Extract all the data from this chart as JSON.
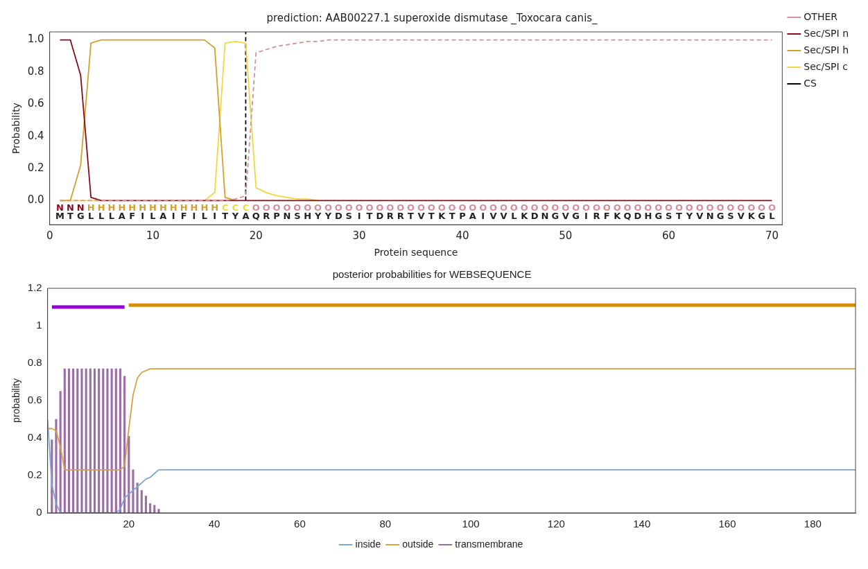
{
  "chart_data": [
    {
      "type": "line",
      "title": "prediction: AAB00227.1 superoxide dismutase _Toxocara canis_",
      "xlabel": "Protein sequence",
      "ylabel": "Probability",
      "x": [
        1,
        2,
        3,
        4,
        5,
        6,
        7,
        8,
        9,
        10,
        11,
        12,
        13,
        14,
        15,
        16,
        17,
        18,
        19,
        20,
        21,
        22,
        23,
        24,
        25,
        26,
        27,
        28,
        29,
        30,
        31,
        32,
        33,
        34,
        35,
        36,
        37,
        38,
        39,
        40,
        41,
        42,
        43,
        44,
        45,
        46,
        47,
        48,
        49,
        50,
        51,
        52,
        53,
        54,
        55,
        56,
        57,
        58,
        59,
        60,
        61,
        62,
        63,
        64,
        65,
        66,
        67,
        68,
        69,
        70
      ],
      "series": [
        {
          "name": "OTHER",
          "color": "#d4909a",
          "line_style": "dashed",
          "values": [
            0,
            0,
            0,
            0,
            0,
            0,
            0,
            0,
            0,
            0,
            0,
            0,
            0,
            0,
            0,
            0,
            0,
            0.01,
            0.03,
            0.92,
            0.94,
            0.96,
            0.97,
            0.98,
            0.99,
            0.99,
            1,
            1,
            1,
            1,
            1,
            1,
            1,
            1,
            1,
            1,
            1,
            1,
            1,
            1,
            1,
            1,
            1,
            1,
            1,
            1,
            1,
            1,
            1,
            1,
            1,
            1,
            1,
            1,
            1,
            1,
            1,
            1,
            1,
            1,
            1,
            1,
            1,
            1,
            1,
            1,
            1,
            1,
            1,
            1
          ]
        },
        {
          "name": "Sec/SPI n",
          "color": "#8b0a1a",
          "values": [
            1,
            1,
            0.78,
            0.02,
            0,
            0,
            0,
            0,
            0,
            0,
            0,
            0,
            0,
            0,
            0,
            0,
            0,
            0,
            0,
            0,
            0,
            0,
            0,
            0,
            0,
            0,
            0,
            0,
            0,
            0,
            0,
            0,
            0,
            0,
            0,
            0,
            0,
            0,
            0,
            0,
            0,
            0,
            0,
            0,
            0,
            0,
            0,
            0,
            0,
            0,
            0,
            0,
            0,
            0,
            0,
            0,
            0,
            0,
            0,
            0,
            0,
            0,
            0,
            0,
            0,
            0,
            0,
            0,
            0,
            0
          ]
        },
        {
          "name": "Sec/SPI h",
          "color": "#d4a02a",
          "values": [
            0,
            0,
            0.22,
            0.98,
            1,
            1,
            1,
            1,
            1,
            1,
            1,
            1,
            1,
            1,
            1,
            0.95,
            0.02,
            0,
            null,
            null,
            null,
            null,
            null,
            null,
            null,
            null,
            null,
            null,
            null,
            null,
            null,
            null,
            null,
            null,
            null,
            null,
            null,
            null,
            null,
            null,
            null,
            null,
            null,
            null,
            null,
            null,
            null,
            null,
            null,
            null,
            null,
            null,
            null,
            null,
            null,
            null,
            null,
            null,
            null,
            null,
            null,
            null,
            null,
            null,
            null,
            null,
            null,
            null,
            null,
            null
          ]
        },
        {
          "name": "Sec/SPI c",
          "color": "#f0d840",
          "values": [
            0,
            0,
            0,
            0,
            0,
            null,
            null,
            null,
            null,
            null,
            null,
            null,
            null,
            null,
            0,
            0.05,
            0.98,
            0.99,
            0.98,
            0.08,
            0.05,
            0.03,
            0.02,
            0.01,
            0.01,
            0,
            null,
            null,
            null,
            null,
            null,
            null,
            null,
            null,
            null,
            null,
            null,
            null,
            null,
            null,
            null,
            null,
            null,
            null,
            null,
            null,
            null,
            null,
            null,
            null,
            null,
            null,
            null,
            null,
            null,
            null,
            null,
            null,
            null,
            null,
            null,
            null,
            null,
            null,
            null,
            null,
            null,
            null,
            null,
            null
          ]
        },
        {
          "name": "CS",
          "color": "#000000",
          "line_style": "dashed",
          "x": [
            19,
            19
          ],
          "values": [
            0,
            1.05
          ]
        }
      ],
      "annotations": [
        "N N N H H H H H H H H H H H H H C C C O O O O O O O O O O O O O O O O O O O O O O O O O O O O O O O O O O O O O O O O O O O O O O O O O O O",
        "M T G L L L A F I L A I F I L I T Y A Q R P N S H Y Y D S I T D R R T V T K T P A I V V L K D N G V G I R F K Q D H G S T Y V N G S V K G L"
      ],
      "xlim": [
        0,
        71
      ],
      "xticks": [
        0,
        10,
        20,
        30,
        40,
        50,
        60,
        70
      ],
      "ylim": [
        -0.15,
        1.05
      ],
      "yticks": [
        {
          "value": 0,
          "label": "0.0"
        },
        {
          "value": 0.2,
          "label": "0.2"
        },
        {
          "value": 0.4,
          "label": "0.4"
        },
        {
          "value": 0.6,
          "label": "0.6"
        },
        {
          "value": 0.8,
          "label": "0.8"
        },
        {
          "value": 1,
          "label": "1.0"
        }
      ],
      "legend": "top right"
    },
    {
      "type": "line",
      "title": "posterior probabilities for WEBSEQUENCE",
      "ylabel": "probability",
      "series": [
        {
          "name": "transmembrane",
          "type": "bar",
          "color": "#9a6fa8",
          "x": [
            2,
            3,
            4,
            5,
            6,
            7,
            8,
            9,
            10,
            11,
            12,
            13,
            14,
            15,
            16,
            17,
            18,
            19,
            20,
            21,
            22,
            23,
            24,
            25,
            26,
            27
          ],
          "values": [
            0.39,
            0.5,
            0.65,
            0.77,
            0.77,
            0.77,
            0.77,
            0.77,
            0.77,
            0.77,
            0.77,
            0.77,
            0.77,
            0.77,
            0.77,
            0.77,
            0.77,
            0.73,
            0.41,
            0.23,
            0.16,
            0.12,
            0.09,
            0.05,
            0.04,
            0.02
          ]
        },
        {
          "name": "inside",
          "color": "#7fa8d0",
          "x": [
            1,
            2,
            3,
            4,
            17,
            18,
            19,
            20,
            21,
            22,
            23,
            24,
            25,
            26,
            27,
            190
          ],
          "values": [
            0.5,
            0.15,
            0.05,
            0,
            0,
            0.02,
            0.08,
            0.1,
            0.12,
            0.14,
            0.16,
            0.18,
            0.19,
            0.21,
            0.23,
            0.23
          ]
        },
        {
          "name": "outside",
          "color": "#d9a040",
          "x": [
            1,
            2,
            3,
            4,
            5,
            18,
            19,
            20,
            21,
            22,
            23,
            24,
            25,
            190
          ],
          "values": [
            0.45,
            0.45,
            0.44,
            0.35,
            0.23,
            0.23,
            0.25,
            0.45,
            0.63,
            0.72,
            0.75,
            0.76,
            0.77,
            0.77
          ]
        },
        {
          "color": "#9400d3",
          "x": [
            2,
            19
          ],
          "values": [
            1.1,
            1.1
          ]
        },
        {
          "color": "#d4900a",
          "x": [
            20,
            190
          ],
          "values": [
            1.11,
            1.11
          ]
        }
      ],
      "xlim": [
        1,
        190
      ],
      "xticks": [
        20,
        40,
        60,
        80,
        100,
        120,
        140,
        160,
        180
      ],
      "ylim": [
        0,
        1.2
      ],
      "yticks": [
        0,
        0.2,
        0.4,
        0.6,
        0.8,
        1,
        1.2
      ],
      "legend": "bottom"
    }
  ]
}
